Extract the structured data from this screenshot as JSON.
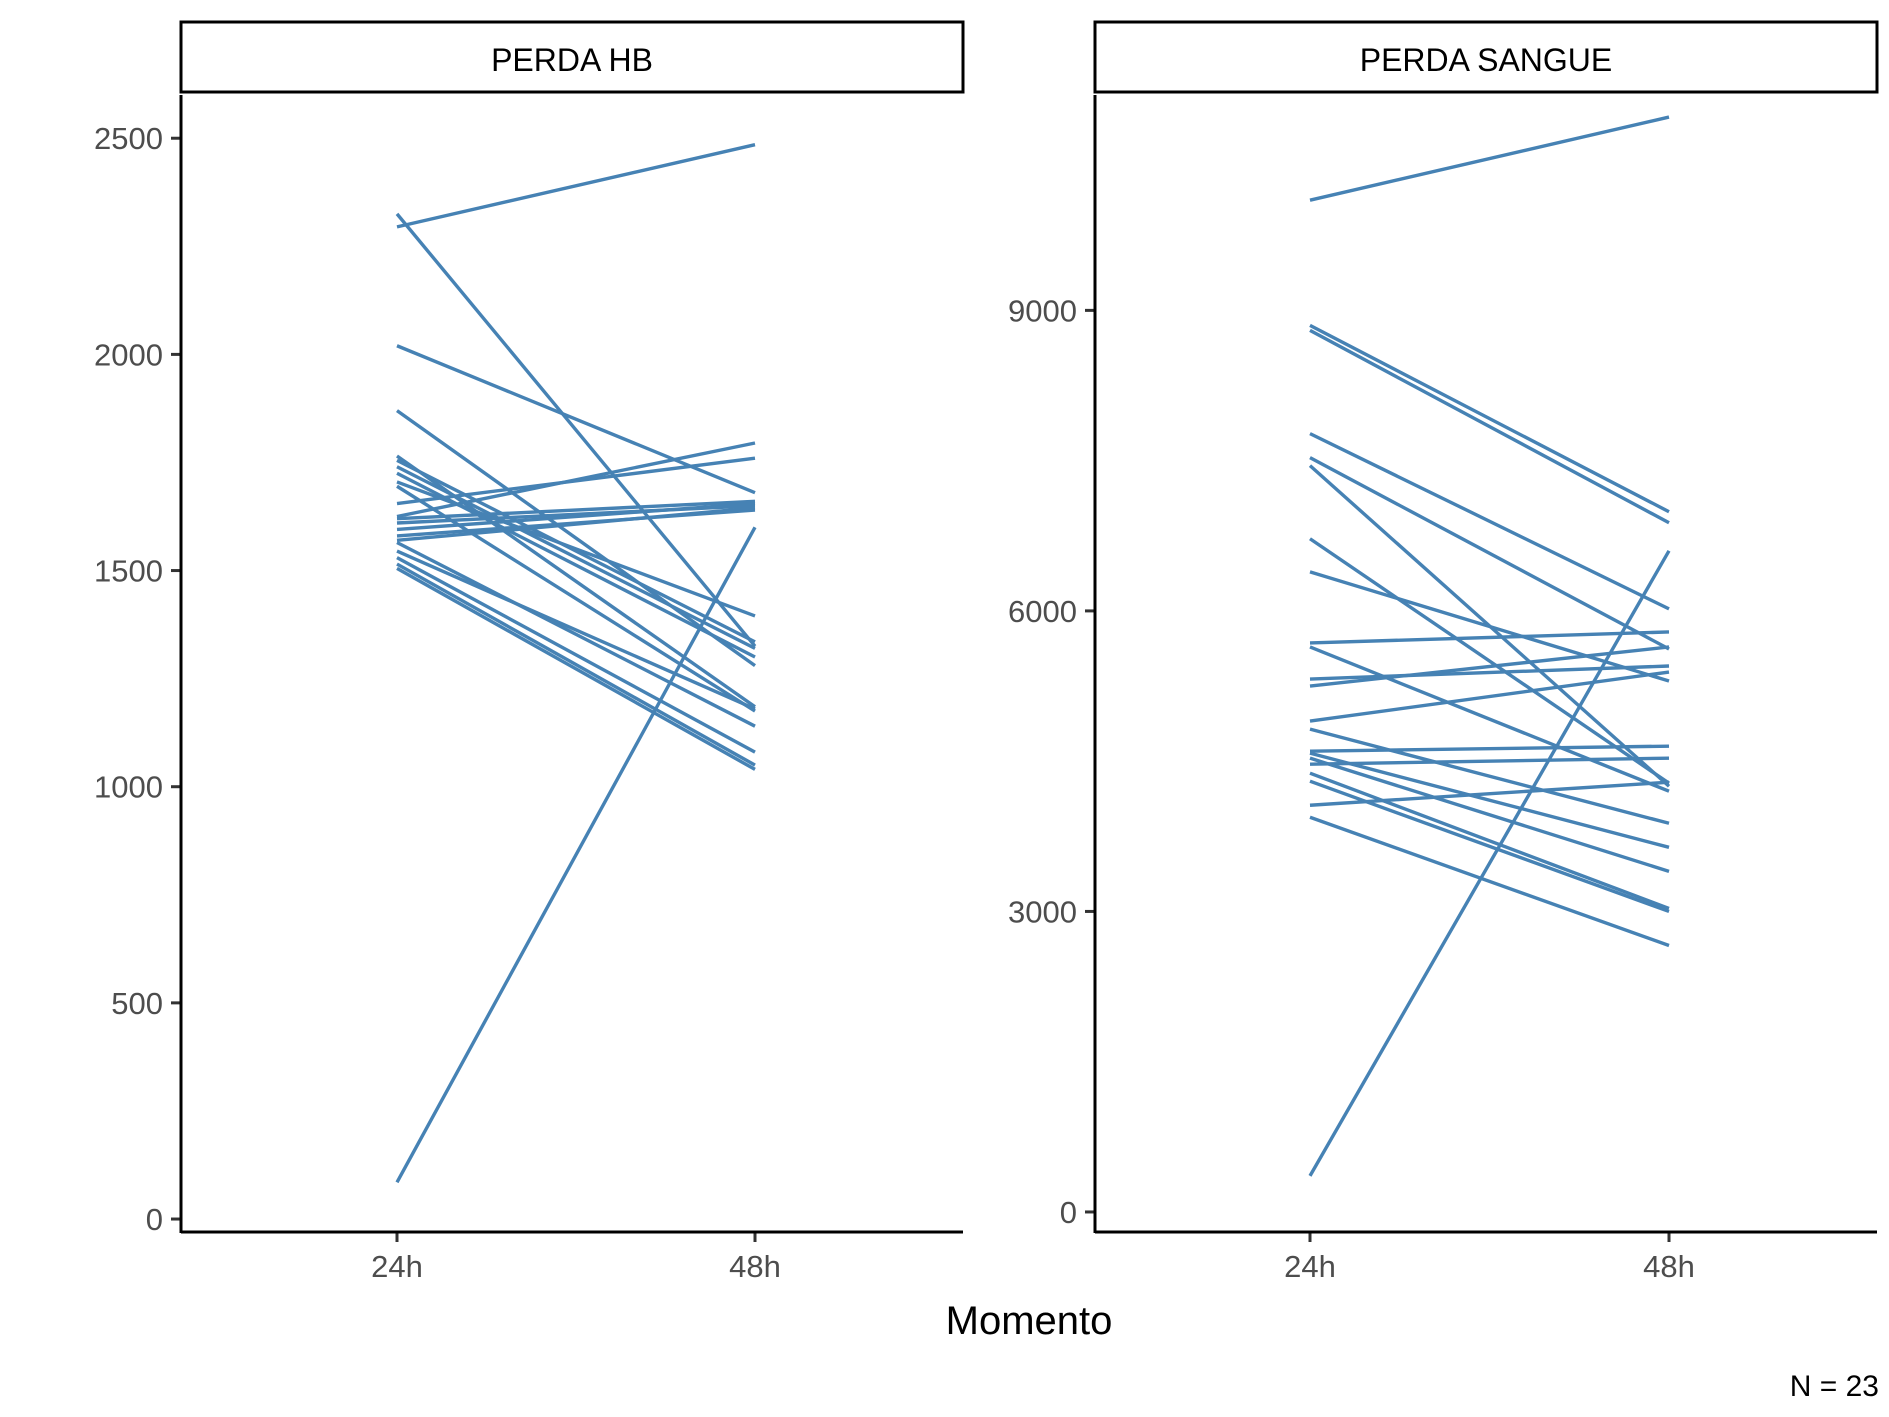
{
  "xlabel": "Momento",
  "caption": "N = 23",
  "colors": {
    "line": "#4682B4",
    "axis": "#000000",
    "tick_text": "#4d4d4d"
  },
  "chart_data": [
    {
      "type": "line",
      "facet": "PERDA HB",
      "categories": [
        "24h",
        "48h"
      ],
      "ylim": [
        -30,
        2600
      ],
      "yticks": [
        0,
        500,
        1000,
        1500,
        2000,
        2500
      ],
      "grid": false,
      "legend": "none",
      "series": [
        {
          "values": [
            2295,
            2485
          ]
        },
        {
          "values": [
            2325,
            1325
          ]
        },
        {
          "values": [
            2020,
            1680
          ]
        },
        {
          "values": [
            1870,
            1280
          ]
        },
        {
          "values": [
            1765,
            1185
          ]
        },
        {
          "values": [
            1755,
            1335
          ]
        },
        {
          "values": [
            1740,
            1320
          ]
        },
        {
          "values": [
            1725,
            1300
          ]
        },
        {
          "values": [
            1705,
            1395
          ]
        },
        {
          "values": [
            1695,
            1175
          ]
        },
        {
          "values": [
            1655,
            1760
          ]
        },
        {
          "values": [
            1625,
            1795
          ]
        },
        {
          "values": [
            1620,
            1660
          ]
        },
        {
          "values": [
            1610,
            1650
          ]
        },
        {
          "values": [
            1595,
            1655
          ]
        },
        {
          "values": [
            1580,
            1640
          ]
        },
        {
          "values": [
            1570,
            1645
          ]
        },
        {
          "values": [
            1565,
            1140
          ]
        },
        {
          "values": [
            1545,
            1180
          ]
        },
        {
          "values": [
            1530,
            1080
          ]
        },
        {
          "values": [
            1515,
            1050
          ]
        },
        {
          "values": [
            1505,
            1040
          ]
        },
        {
          "values": [
            85,
            1600
          ]
        }
      ]
    },
    {
      "type": "line",
      "facet": "PERDA SANGUE",
      "categories": [
        "24h",
        "48h"
      ],
      "ylim": [
        -200,
        11150
      ],
      "yticks": [
        0,
        3000,
        6000,
        9000
      ],
      "grid": false,
      "legend": "none",
      "series": [
        {
          "values": [
            10100,
            10930
          ]
        },
        {
          "values": [
            8850,
            6990
          ]
        },
        {
          "values": [
            8800,
            6880
          ]
        },
        {
          "values": [
            7770,
            6020
          ]
        },
        {
          "values": [
            7530,
            5620
          ]
        },
        {
          "values": [
            7450,
            4250
          ]
        },
        {
          "values": [
            6720,
            4280
          ]
        },
        {
          "values": [
            6390,
            5300
          ]
        },
        {
          "values": [
            5680,
            5790
          ]
        },
        {
          "values": [
            5640,
            4200
          ]
        },
        {
          "values": [
            5320,
            5450
          ]
        },
        {
          "values": [
            5250,
            5640
          ]
        },
        {
          "values": [
            4900,
            5390
          ]
        },
        {
          "values": [
            4820,
            3880
          ]
        },
        {
          "values": [
            4600,
            4650
          ]
        },
        {
          "values": [
            4580,
            3640
          ]
        },
        {
          "values": [
            4530,
            3400
          ]
        },
        {
          "values": [
            4470,
            4530
          ]
        },
        {
          "values": [
            4380,
            3030
          ]
        },
        {
          "values": [
            4300,
            3000
          ]
        },
        {
          "values": [
            4060,
            4290
          ]
        },
        {
          "values": [
            3940,
            2660
          ]
        },
        {
          "values": [
            360,
            6600
          ]
        }
      ]
    }
  ]
}
